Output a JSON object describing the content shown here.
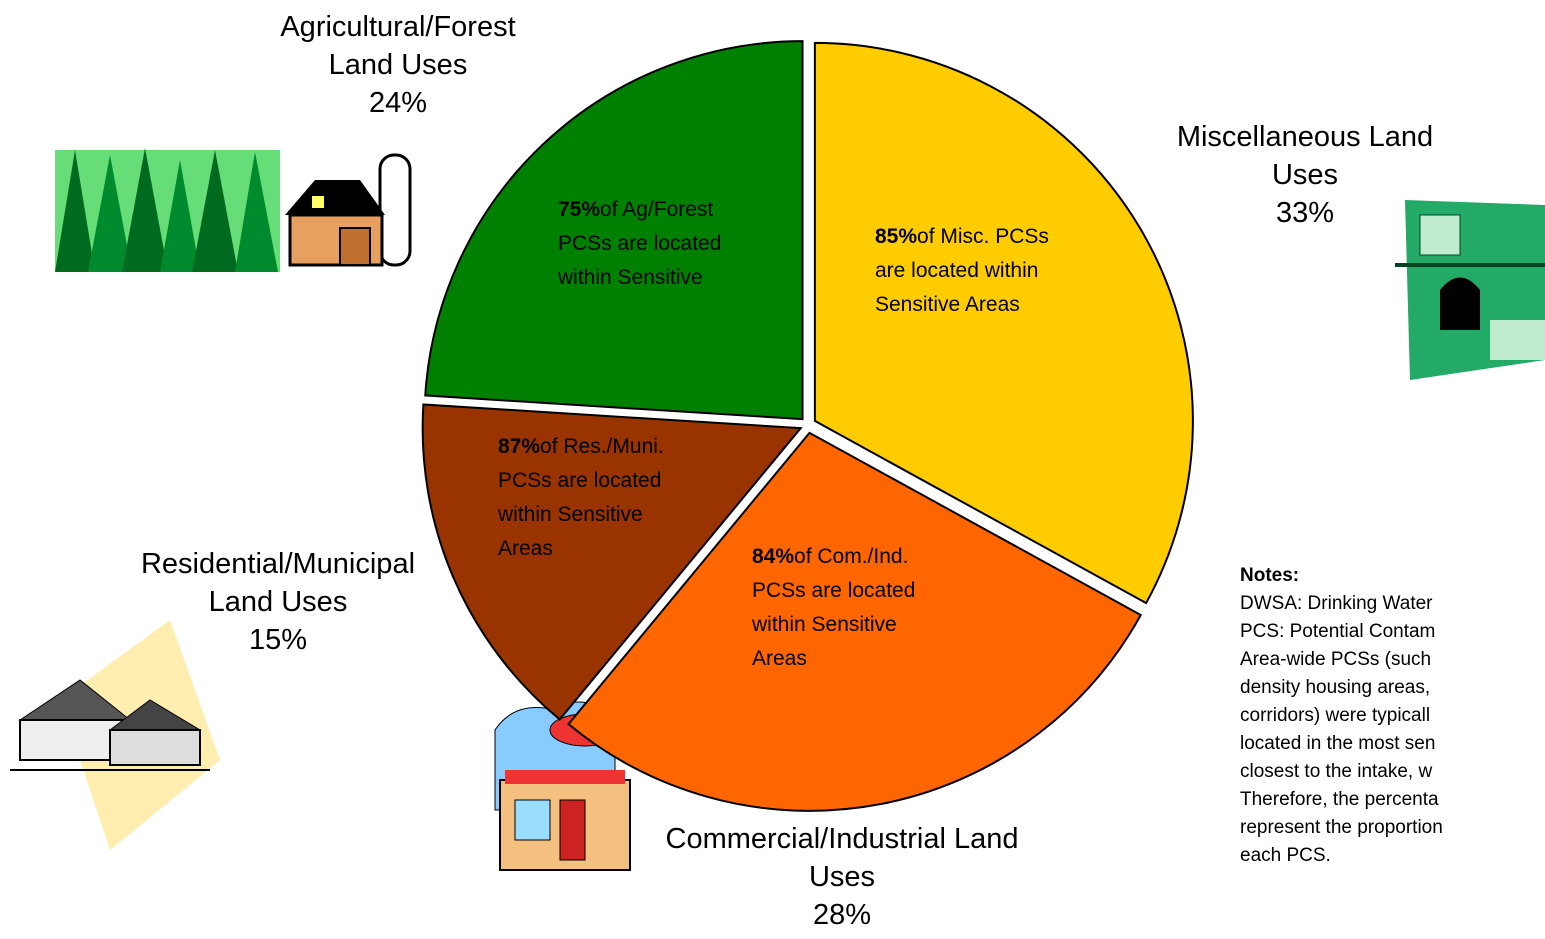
{
  "chart_data": {
    "type": "pie",
    "categories": [
      "Miscellaneous Land Uses",
      "Commercial/Industrial Land Uses",
      "Residential/Municipal Land Uses",
      "Agricultural/Forest Land Uses"
    ],
    "values": [
      33,
      28,
      15,
      24
    ],
    "value_labels": [
      "33%",
      "28%",
      "15%",
      "24%"
    ],
    "colors": [
      "#ffcc00",
      "#ff6600",
      "#993300",
      "#008000"
    ],
    "annotations": [
      {
        "bold": "85%",
        "text": "of Misc. PCSs are located within Sensitive Areas"
      },
      {
        "bold": "84%",
        "text": "of Com./Ind. PCSs are located within Sensitive Areas"
      },
      {
        "bold": "87%",
        "text": "of Res./Muni. PCSs are located within Sensitive Areas"
      },
      {
        "bold": "75%",
        "text": "of Ag/Forest PCSs are located within Sensitive"
      }
    ],
    "notes": {
      "title": "Notes:",
      "lines": [
        "DWSA: Drinking Water",
        "PCS: Potential Contam",
        "Area-wide PCSs (such",
        "density housing areas,",
        "corridors) were typicall",
        "located in the most sen",
        "closest to the intake, w",
        "Therefore, the percenta",
        "represent the proportion",
        "each PCS."
      ]
    }
  }
}
